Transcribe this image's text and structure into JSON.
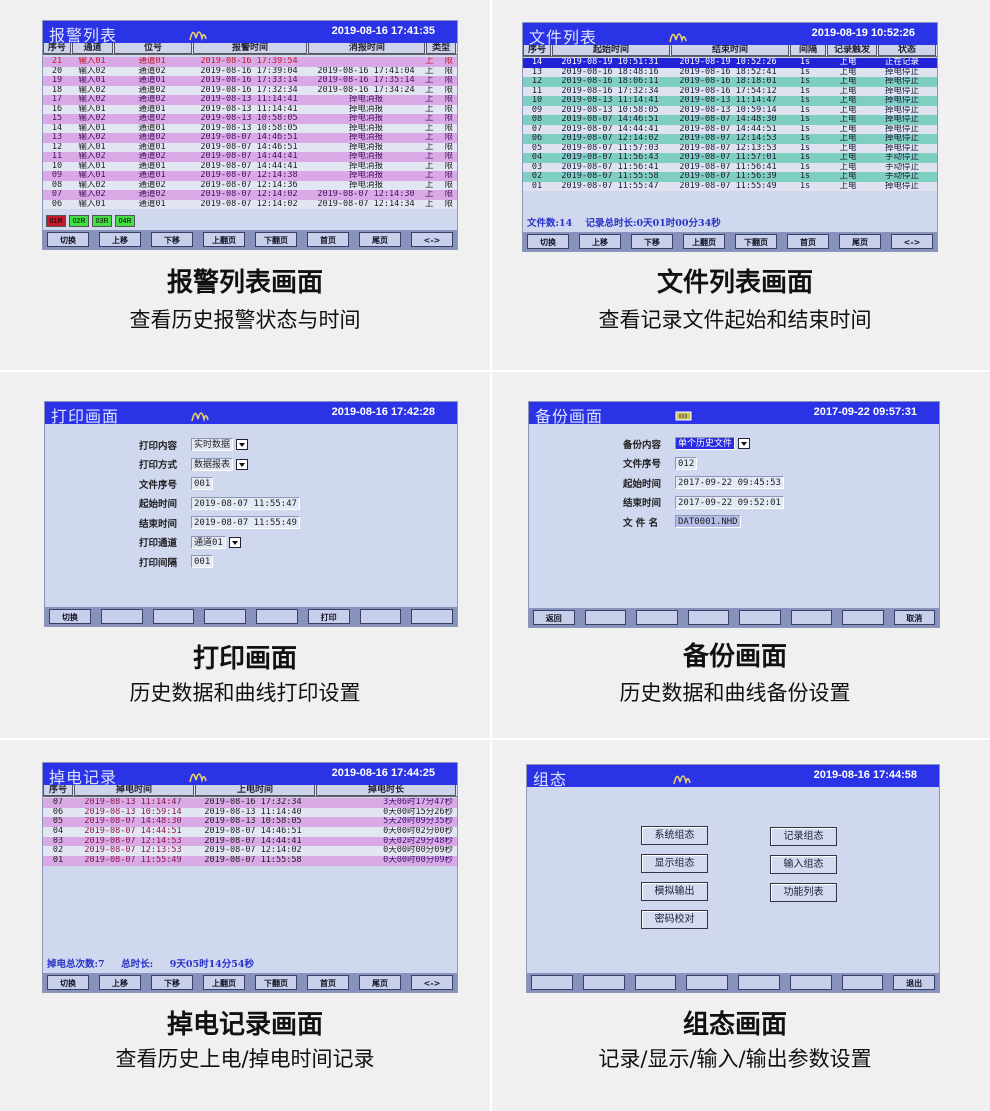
{
  "colors": {
    "title_bar": "#2b33e6",
    "screen_bg": "#cfd8ee",
    "row_purple": "#d9a9e6",
    "row_teal": "#7fcfc1",
    "row_selected": "#2222d6",
    "alarm_red": "#c21a2a",
    "ok_green": "#44dd44"
  },
  "alarm": {
    "title": "报警列表",
    "datetime": "2019-08-16 17:41:35",
    "logo_icon": "wave-logo-icon",
    "headers": [
      "序号",
      "通道",
      "位号",
      "报警时间",
      "消报时间",
      "类型"
    ],
    "rows": [
      [
        "21",
        "输入01",
        "通道01",
        "2019-08-16 17:39:54",
        "",
        "上限"
      ],
      [
        "20",
        "输入02",
        "通道02",
        "2019-08-16 17:39:04",
        "2019-08-16 17:41:04",
        "上限"
      ],
      [
        "19",
        "输入01",
        "通道01",
        "2019-08-16 17:33:14",
        "2019-08-16 17:35:14",
        "上限"
      ],
      [
        "18",
        "输入02",
        "通道02",
        "2019-08-16 17:32:34",
        "2019-08-16 17:34:24",
        "上限"
      ],
      [
        "17",
        "输入02",
        "通道02",
        "2019-08-13 11:14:41",
        "掉电消报",
        "上限"
      ],
      [
        "16",
        "输入01",
        "通道01",
        "2019-08-13 11:14:41",
        "掉电消报",
        "上限"
      ],
      [
        "15",
        "输入02",
        "通道02",
        "2019-08-13 10:58:05",
        "掉电消报",
        "上限"
      ],
      [
        "14",
        "输入01",
        "通道01",
        "2019-08-13 10:58:05",
        "掉电消报",
        "上限"
      ],
      [
        "13",
        "输入02",
        "通道02",
        "2019-08-07 14:46:51",
        "掉电消报",
        "上限"
      ],
      [
        "12",
        "输入01",
        "通道01",
        "2019-08-07 14:46:51",
        "掉电消报",
        "上限"
      ],
      [
        "11",
        "输入02",
        "通道02",
        "2019-08-07 14:44:41",
        "掉电消报",
        "上限"
      ],
      [
        "10",
        "输入01",
        "通道01",
        "2019-08-07 14:44:41",
        "掉电消报",
        "上限"
      ],
      [
        "09",
        "输入01",
        "通道01",
        "2019-08-07 12:14:38",
        "掉电消报",
        "上限"
      ],
      [
        "08",
        "输入02",
        "通道02",
        "2019-08-07 12:14:36",
        "掉电消报",
        "上限"
      ],
      [
        "07",
        "输入02",
        "通道02",
        "2019-08-07 12:14:02",
        "2019-08-07 12:14:30",
        "上限"
      ],
      [
        "06",
        "输入01",
        "通道01",
        "2019-08-07 12:14:02",
        "2019-08-07 12:14:34",
        "上限"
      ]
    ],
    "indicators": [
      {
        "label": "01R",
        "state": "alarm"
      },
      {
        "label": "02R",
        "state": "ok"
      },
      {
        "label": "03R",
        "state": "ok"
      },
      {
        "label": "04R",
        "state": "ok"
      }
    ],
    "buttons": [
      "切换",
      "上移",
      "下移",
      "上翻页",
      "下翻页",
      "首页",
      "尾页",
      "<->"
    ],
    "caption": "报警列表画面",
    "subcaption": "查看历史报警状态与时间"
  },
  "files": {
    "title": "文件列表",
    "datetime": "2019-08-19 10:52:26",
    "logo_icon": "wave-logo-icon",
    "headers": [
      "序号",
      "起始时间",
      "结束时间",
      "间隔",
      "记录触发",
      "状态"
    ],
    "rows": [
      [
        "14",
        "2019-08-19 10:51:31",
        "2019-08-19 10:52:26",
        "1s",
        "上电",
        "正在记录"
      ],
      [
        "13",
        "2019-08-16 18:48:16",
        "2019-08-16 18:52:41",
        "1s",
        "上电",
        "掉电停止"
      ],
      [
        "12",
        "2019-08-16 18:06:11",
        "2019-08-16 18:18:01",
        "1s",
        "上电",
        "掉电停止"
      ],
      [
        "11",
        "2019-08-16 17:32:34",
        "2019-08-16 17:54:12",
        "1s",
        "上电",
        "掉电停止"
      ],
      [
        "10",
        "2019-08-13 11:14:41",
        "2019-08-13 11:14:47",
        "1s",
        "上电",
        "掉电停止"
      ],
      [
        "09",
        "2019-08-13 10:58:05",
        "2019-08-13 10:59:14",
        "1s",
        "上电",
        "掉电停止"
      ],
      [
        "08",
        "2019-08-07 14:46:51",
        "2019-08-07 14:48:30",
        "1s",
        "上电",
        "掉电停止"
      ],
      [
        "07",
        "2019-08-07 14:44:41",
        "2019-08-07 14:44:51",
        "1s",
        "上电",
        "掉电停止"
      ],
      [
        "06",
        "2019-08-07 12:14:02",
        "2019-08-07 12:14:53",
        "1s",
        "上电",
        "掉电停止"
      ],
      [
        "05",
        "2019-08-07 11:57:03",
        "2019-08-07 12:13:53",
        "1s",
        "上电",
        "掉电停止"
      ],
      [
        "04",
        "2019-08-07 11:56:43",
        "2019-08-07 11:57:01",
        "1s",
        "上电",
        "手动停止"
      ],
      [
        "03",
        "2019-08-07 11:56:41",
        "2019-08-07 11:56:41",
        "1s",
        "上电",
        "手动停止"
      ],
      [
        "02",
        "2019-08-07 11:55:58",
        "2019-08-07 11:56:39",
        "1s",
        "上电",
        "手动停止"
      ],
      [
        "01",
        "2019-08-07 11:55:47",
        "2019-08-07 11:55:49",
        "1s",
        "上电",
        "掉电停止"
      ]
    ],
    "file_count": "文件数:14",
    "total_duration": "记录总时长:0天01时00分34秒",
    "buttons": [
      "切换",
      "上移",
      "下移",
      "上翻页",
      "下翻页",
      "首页",
      "尾页",
      "<->"
    ],
    "caption": "文件列表画面",
    "subcaption": "查看记录文件起始和结束时间"
  },
  "print": {
    "title": "打印画面",
    "datetime": "2019-08-16 17:42:28",
    "logo_icon": "wave-logo-icon",
    "fields": [
      {
        "label": "打印内容",
        "value": "实时数据",
        "dropdown": true
      },
      {
        "label": "打印方式",
        "value": "数据报表",
        "dropdown": true
      },
      {
        "label": "文件序号",
        "value": "001",
        "dropdown": false
      },
      {
        "label": "起始时间",
        "value": "2019-08-07  11:55:47",
        "dropdown": false
      },
      {
        "label": "结束时间",
        "value": "2019-08-07  11:55:49",
        "dropdown": false
      },
      {
        "label": "打印通道",
        "value": "通道01",
        "dropdown": true
      },
      {
        "label": "打印间隔",
        "value": "001",
        "dropdown": false
      }
    ],
    "buttons": [
      "切换",
      "",
      "",
      "",
      "",
      "打印",
      "",
      ""
    ],
    "caption": "打印画面",
    "subcaption": "历史数据和曲线打印设置"
  },
  "backup": {
    "title": "备份画面",
    "datetime": "2017-09-22 09:57:31",
    "logo_icon": "memory-card-icon",
    "fields": [
      {
        "label": "备份内容",
        "value": "单个历史文件",
        "dropdown": true
      },
      {
        "label": "文件序号",
        "value": "012",
        "dropdown": false
      },
      {
        "label": "起始时间",
        "value": "2017-09-22 09:45:53",
        "dropdown": false
      },
      {
        "label": "结束时间",
        "value": "2017-09-22 09:52:01",
        "dropdown": false
      },
      {
        "label": "文 件 名",
        "value": "DAT0001.NHD",
        "dropdown": false
      }
    ],
    "buttons": [
      "返回",
      "",
      "",
      "",
      "",
      "",
      "",
      "取消"
    ],
    "caption": "备份画面",
    "subcaption": "历史数据和曲线备份设置"
  },
  "power": {
    "title": "掉电记录",
    "datetime": "2019-08-16 17:44:25",
    "logo_icon": "wave-logo-icon",
    "headers": [
      "序号",
      "掉电时间",
      "上电时间",
      "掉电时长"
    ],
    "rows": [
      [
        "07",
        "2019-08-13 11:14:47",
        "2019-08-16 17:32:34",
        "3天06时17分47秒"
      ],
      [
        "06",
        "2019-08-13 10:59:14",
        "2019-08-13 11:14:40",
        "0天00时15分26秒"
      ],
      [
        "05",
        "2019-08-07 14:48:30",
        "2019-08-13 10:58:05",
        "5天20时09分35秒"
      ],
      [
        "04",
        "2019-08-07 14:44:51",
        "2019-08-07 14:46:51",
        "0天00时02分00秒"
      ],
      [
        "03",
        "2019-08-07 12:14:53",
        "2019-08-07 14:44:41",
        "0天02时29分48秒"
      ],
      [
        "02",
        "2019-08-07 12:13:53",
        "2019-08-07 12:14:02",
        "0天00时00分09秒"
      ],
      [
        "01",
        "2019-08-07 11:55:49",
        "2019-08-07 11:55:58",
        "0天00时00分09秒"
      ]
    ],
    "total_count": "掉电总次数:7",
    "total_label": "总时长:",
    "total_value": "9天05时14分54秒",
    "buttons": [
      "切换",
      "上移",
      "下移",
      "上翻页",
      "下翻页",
      "首页",
      "尾页",
      "<->"
    ],
    "caption": "掉电记录画面",
    "subcaption": "查看历史上电/掉电时间记录"
  },
  "config": {
    "title": "组态",
    "datetime": "2019-08-16 17:44:58",
    "logo_icon": "wave-logo-icon",
    "menu": [
      "系统组态",
      "记录组态",
      "显示组态",
      "输入组态",
      "模拟输出",
      "功能列表",
      "密码校对"
    ],
    "buttons": [
      "",
      "",
      "",
      "",
      "",
      "",
      "",
      "退出"
    ],
    "caption": "组态画面",
    "subcaption": "记录/显示/输入/输出参数设置"
  }
}
